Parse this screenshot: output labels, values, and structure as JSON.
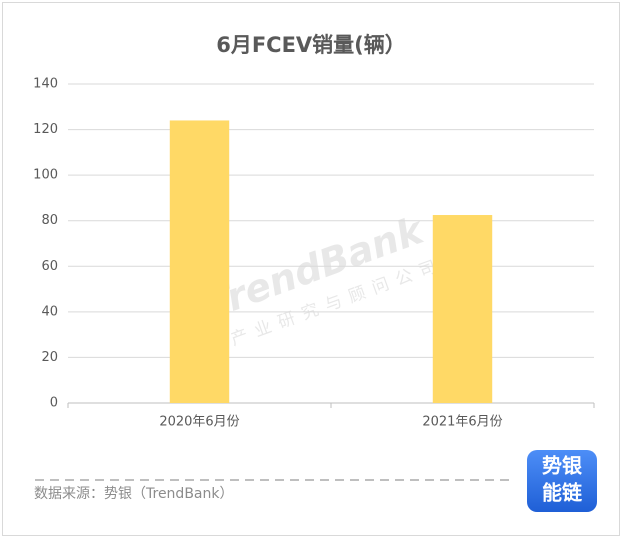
{
  "chart_data": {
    "type": "bar",
    "title": "6月FCEV销量(辆）",
    "categories": [
      "2020年6月份",
      "2021年6月份"
    ],
    "values": [
      124,
      82.5
    ],
    "color": "#ffd966",
    "ylim": [
      0,
      140
    ],
    "yticks": [
      0,
      20,
      40,
      60,
      80,
      100,
      120,
      140
    ],
    "grid": true,
    "source": "数据来源：势银（TrendBank）",
    "watermark": {
      "brand": "TrendBank",
      "tagline": "产业研究与顾问公司"
    },
    "logo": [
      "势银",
      "能链"
    ]
  }
}
